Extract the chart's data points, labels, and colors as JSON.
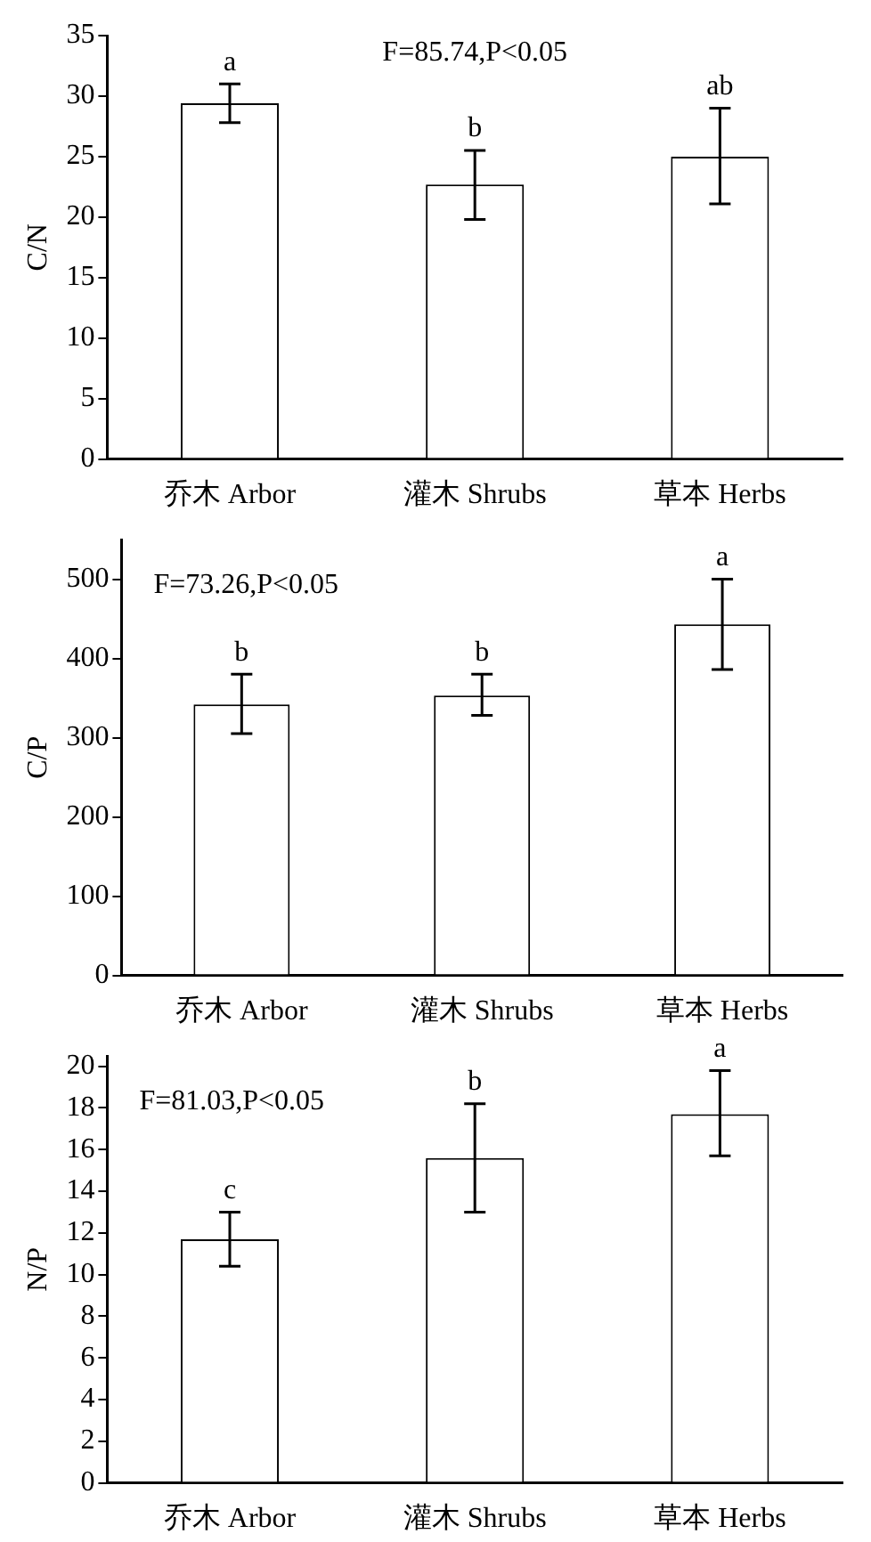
{
  "chart_data": [
    {
      "type": "bar",
      "ylabel": "C/N",
      "categories": [
        "乔木 Arbor",
        "灌木 Shrubs",
        "草本 Herbs"
      ],
      "values": [
        29.4,
        22.7,
        25.0
      ],
      "errors": [
        [
          27.8,
          31.0
        ],
        [
          19.8,
          25.5
        ],
        [
          21.1,
          29.0
        ]
      ],
      "color": "#ffffff",
      "ylim": [
        0,
        35
      ],
      "yticks": [
        0,
        5,
        10,
        15,
        20,
        25,
        30,
        35
      ],
      "annotations": [
        {
          "text": "a",
          "x": "乔木 Arbor",
          "y": 31.0
        },
        {
          "text": "b",
          "x": "灌木 Shrubs",
          "y": 25.5
        },
        {
          "text": "ab",
          "x": "草本 Herbs",
          "y": 29.0
        },
        "F=85.74,P<0.05"
      ]
    },
    {
      "type": "bar",
      "ylabel": "C/P",
      "categories": [
        "乔木 Arbor",
        "灌木 Shrubs",
        "草本 Herbs"
      ],
      "values": [
        342,
        353,
        443
      ],
      "errors": [
        [
          305,
          380
        ],
        [
          328,
          380
        ],
        [
          386,
          500
        ]
      ],
      "color": "#ffffff",
      "ylim": [
        0,
        550
      ],
      "yticks": [
        0,
        100,
        200,
        300,
        400,
        500
      ],
      "annotations": [
        {
          "text": "b",
          "x": "乔木 Arbor",
          "y": 380
        },
        {
          "text": "b",
          "x": "灌木 Shrubs",
          "y": 380
        },
        {
          "text": "a",
          "x": "草本 Herbs",
          "y": 500
        },
        "F=73.26,P<0.05"
      ]
    },
    {
      "type": "bar",
      "ylabel": "N/P",
      "categories": [
        "乔木 Arbor",
        "灌木 Shrubs",
        "草本 Herbs"
      ],
      "values": [
        11.7,
        15.6,
        17.7
      ],
      "errors": [
        [
          10.4,
          13.0
        ],
        [
          13.0,
          18.2
        ],
        [
          15.7,
          19.8
        ]
      ],
      "color": "#ffffff",
      "ylim": [
        0,
        20.5
      ],
      "yticks": [
        0,
        2,
        4,
        6,
        8,
        10,
        12,
        14,
        16,
        18,
        20
      ],
      "annotations": [
        {
          "text": "c",
          "x": "乔木 Arbor",
          "y": 13.0
        },
        {
          "text": "b",
          "x": "灌木 Shrubs",
          "y": 18.2
        },
        {
          "text": "a",
          "x": "草本 Herbs",
          "y": 19.8
        },
        "F=81.03,P<0.05"
      ]
    }
  ]
}
